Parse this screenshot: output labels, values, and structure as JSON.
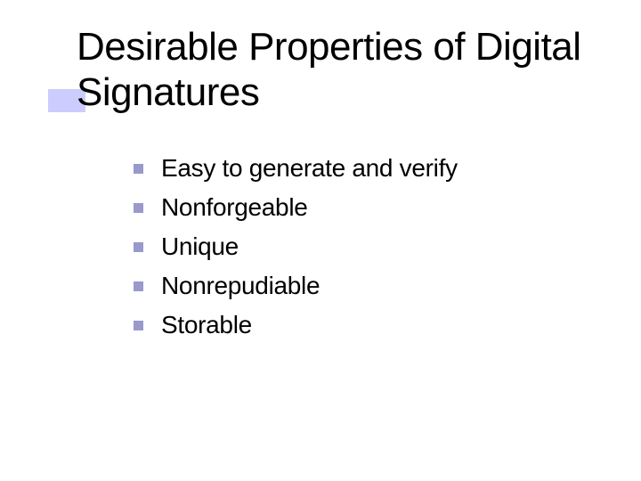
{
  "slide": {
    "title": "Desirable Properties of Digital Signatures",
    "title_fontsize": 44,
    "title_color": "#000000",
    "title_accent_color": "#ccccff",
    "background_color": "#ffffff",
    "bullets": [
      {
        "text": "Easy to generate and verify"
      },
      {
        "text": "Nonforgeable"
      },
      {
        "text": "Unique"
      },
      {
        "text": "Nonrepudiable"
      },
      {
        "text": "Storable"
      }
    ],
    "bullet_marker_color": "#9999cc",
    "bullet_fontsize": 28,
    "bullet_text_color": "#000000"
  }
}
